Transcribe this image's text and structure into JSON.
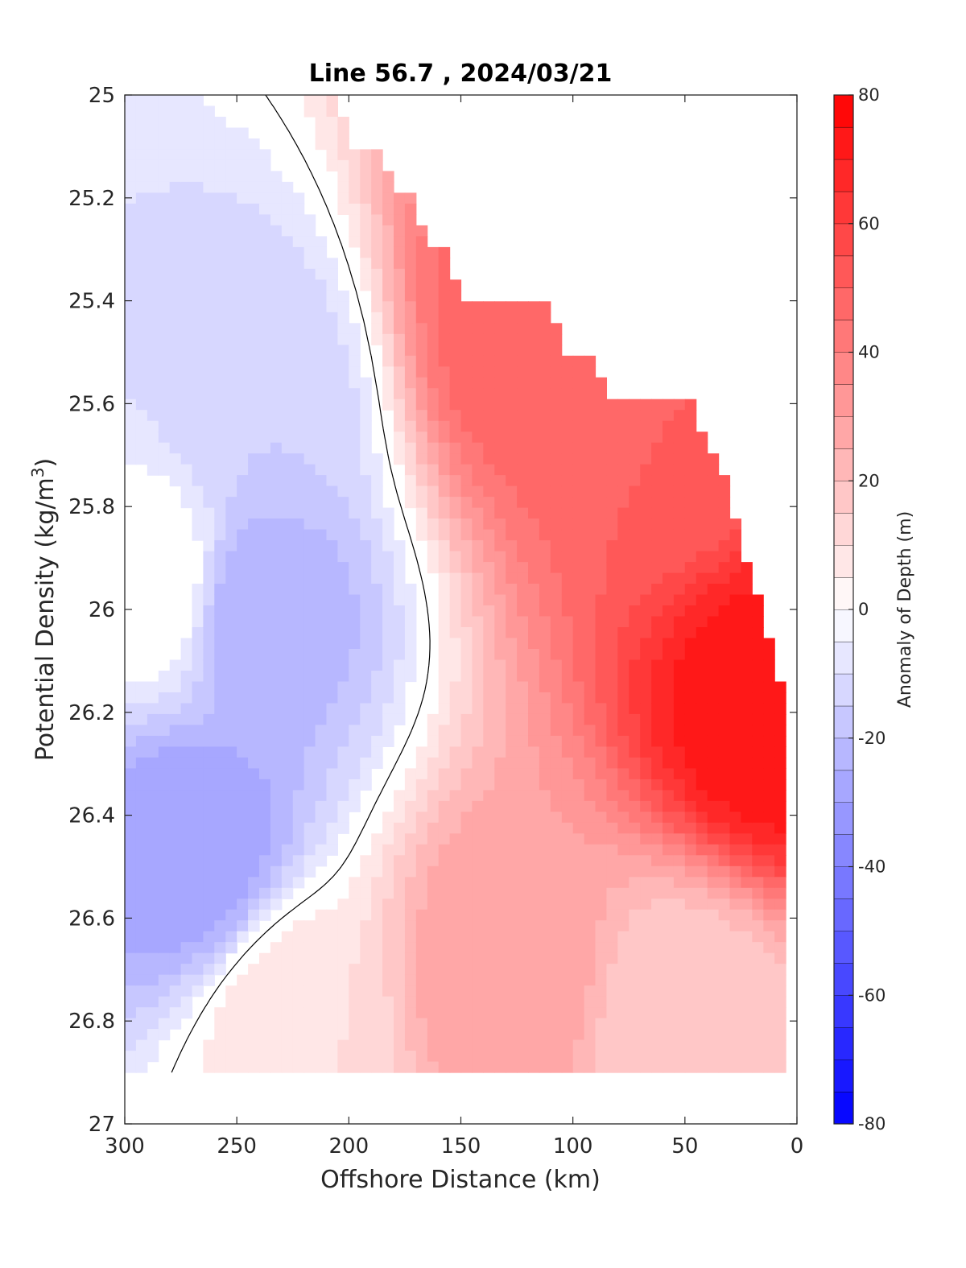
{
  "chart_data": {
    "type": "contour",
    "title": "Line 56.7 , 2024/03/21",
    "xlabel": "Offshore Distance (km)",
    "ylabel_main": "Potential Density (kg/m",
    "ylabel_sup": "3",
    "ylabel_close": ")",
    "colorbar_label": "Anomaly of Depth (m)",
    "xlim": [
      300,
      0
    ],
    "x_reversed": true,
    "ylim": [
      25,
      27
    ],
    "y_reversed": true,
    "x_ticks": [
      300,
      250,
      200,
      150,
      100,
      50,
      0
    ],
    "x_tick_labels": [
      "300",
      "250",
      "200",
      "150",
      "100",
      "50",
      "0"
    ],
    "y_ticks": [
      25,
      25.2,
      25.4,
      25.6,
      25.8,
      26,
      26.2,
      26.4,
      26.6,
      26.8,
      27
    ],
    "y_tick_labels": [
      "25",
      "25.2",
      "25.4",
      "25.6",
      "25.8",
      "26",
      "26.2",
      "26.4",
      "26.6",
      "26.8",
      "27"
    ],
    "colorbar_range": [
      -80,
      80
    ],
    "colorbar_step": 5,
    "colorbar_ticks": [
      80,
      60,
      40,
      20,
      0,
      -20,
      -40,
      -60,
      -80
    ],
    "colorbar_tick_labels": [
      "80",
      "60",
      "40",
      "20",
      "0",
      "-20",
      "-40",
      "-60",
      "-80"
    ],
    "colormap": "blue-white-red",
    "color_negative": "#0000ff",
    "color_zero": "#ffffff",
    "color_positive": "#ff0000",
    "zero_contour_color": "#000000",
    "data_region": {
      "shallow_edge": [
        [
          300,
          25
        ],
        [
          204,
          25
        ],
        [
          200,
          25.1
        ],
        [
          184,
          25.1
        ],
        [
          180,
          25.2
        ],
        [
          170,
          25.2
        ],
        [
          166,
          25.3
        ],
        [
          155,
          25.3
        ],
        [
          150,
          25.4
        ],
        [
          110,
          25.4
        ],
        [
          105,
          25.5
        ],
        [
          90,
          25.5
        ],
        [
          85,
          25.6
        ],
        [
          45,
          25.6
        ],
        [
          40,
          25.7
        ],
        [
          35,
          25.7
        ],
        [
          10,
          26.1
        ],
        [
          5,
          26.2
        ],
        [
          10,
          26.3
        ],
        [
          15,
          26.3
        ]
      ],
      "deep_limit": 26.9
    },
    "anomaly_estimates": [
      {
        "x": 270,
        "y": 26.47,
        "value": -30
      },
      {
        "x": 242,
        "y": 26.0,
        "value": -25
      },
      {
        "x": 240,
        "y": 25.6,
        "value": -15
      },
      {
        "x": 285,
        "y": 25.95,
        "value": 0
      },
      {
        "x": 225,
        "y": 26.8,
        "value": 10
      },
      {
        "x": 120,
        "y": 25.45,
        "value": 50
      },
      {
        "x": 60,
        "y": 25.65,
        "value": 50
      },
      {
        "x": 12,
        "y": 26.2,
        "value": 75
      },
      {
        "x": 130,
        "y": 26.7,
        "value": 30
      },
      {
        "x": 50,
        "y": 26.8,
        "value": 15
      }
    ]
  }
}
